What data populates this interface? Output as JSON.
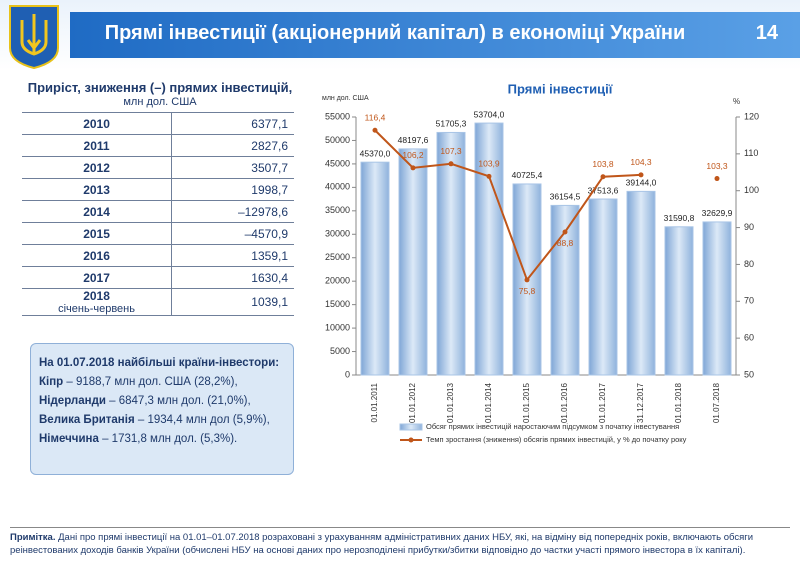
{
  "header": {
    "title": "Прямі інвестиції (акціонерний капітал) в економіці України",
    "page": "14"
  },
  "table": {
    "title": "Приріст, зниження (–) прямих інвестицій,",
    "unit": "млн дол. США",
    "rows": [
      {
        "year": "2010",
        "value": "6377,1"
      },
      {
        "year": "2011",
        "value": "2827,6"
      },
      {
        "year": "2012",
        "value": "3507,7"
      },
      {
        "year": "2013",
        "value": "1998,7"
      },
      {
        "year": "2014",
        "value": "–12978,6"
      },
      {
        "year": "2015",
        "value": "–4570,9"
      },
      {
        "year": "2016",
        "value": "1359,1"
      },
      {
        "year": "2017",
        "value": "1630,4"
      },
      {
        "year": "2018",
        "period": "січень-червень",
        "value": "1039,1"
      }
    ]
  },
  "investors": {
    "title": "На 01.07.2018 найбільші країни-інвестори:",
    "items": [
      {
        "country": "Кіпр",
        "text": "– 9188,7 млн дол. США (28,2%),"
      },
      {
        "country": "Нідерланди",
        "text": "– 6847,3 млн дол. (21,0%),"
      },
      {
        "country": "Велика Британія",
        "text": "– 1934,4 млн дол (5,9%),"
      },
      {
        "country": "Німеччина",
        "text": "– 1731,8 млн дол. (5,3%)."
      }
    ]
  },
  "chart_data": {
    "type": "bar-line",
    "title": "Прямі інвестиції",
    "ylabel": "млн дол. США",
    "y2label": "%",
    "categories": [
      "01.01.2011",
      "01.01.2012",
      "01.01.2013",
      "01.01.2014",
      "01.01.2015",
      "01.01.2016",
      "01.01.2017",
      "31.12.2017",
      "01.01.2018",
      "01.07.2018"
    ],
    "series": [
      {
        "name": "Обсяг прямих інвестицій наростаючим підсумком з початку інвестування",
        "color": "#a8c4e6",
        "values": [
          45370.0,
          48197.6,
          51705.3,
          53704.0,
          40725.4,
          36154.5,
          37513.6,
          39144.0,
          31590.8,
          32629.9
        ],
        "value_labels": [
          "45370,0",
          "48197,6",
          "51705,3",
          "53704,0",
          "40725,4",
          "36154,5",
          "37513,6",
          "39144,0",
          "31590,8",
          "32629,9"
        ]
      },
      {
        "name": "Темп зростання (зниження) обсягів прямих інвестицій, у % до початку року",
        "color": "#c0561a",
        "axis": "y2",
        "values": [
          116.4,
          106.2,
          107.3,
          103.9,
          75.8,
          88.8,
          103.8,
          104.3,
          null,
          103.3
        ],
        "value_labels": [
          "116,4",
          "106,2",
          "107,3",
          "103,9",
          "75,8",
          "88,8",
          "103,8",
          "104,3",
          null,
          "103,3"
        ]
      }
    ],
    "ylim": [
      0,
      55000
    ],
    "yticks": [
      0,
      5000,
      10000,
      15000,
      20000,
      25000,
      30000,
      35000,
      40000,
      45000,
      50000,
      55000
    ],
    "y2lim": [
      50,
      120
    ],
    "y2ticks": [
      50,
      60,
      70,
      80,
      90,
      100,
      110,
      120
    ]
  },
  "note": {
    "label": "Примітка.",
    "text": "Дані про прямі інвестиції на 01.01–01.07.2018 розраховані з урахуванням адміністративних даних НБУ, які, на відміну від попередніх років, включають обсяги реінвестованих доходів банків України (обчислені НБУ на основі даних про нерозподілені прибутки/збитки відповідно до частки участі прямого інвестора в їх капіталі)."
  }
}
